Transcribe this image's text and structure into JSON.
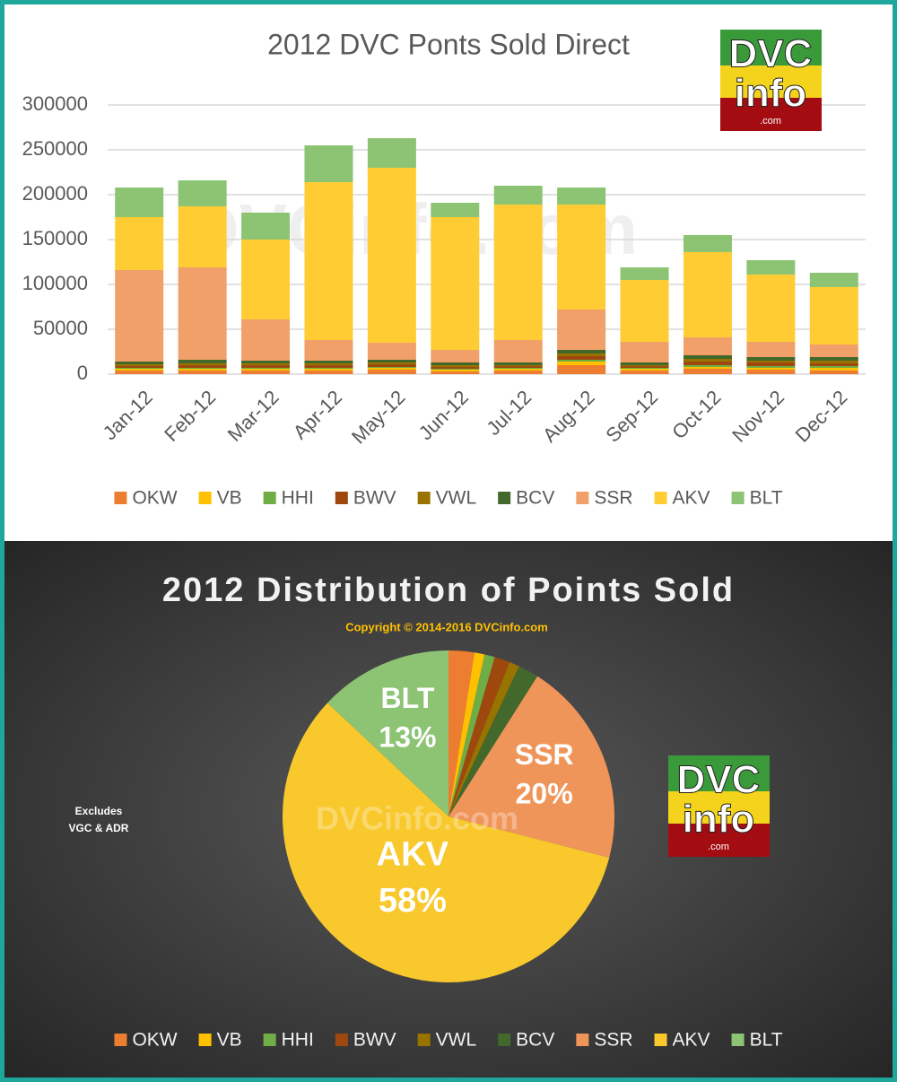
{
  "chart_data": [
    {
      "type": "bar",
      "stacked": true,
      "title": "2012 DVC Ponts Sold Direct",
      "categories": [
        "Jan-12",
        "Feb-12",
        "Mar-12",
        "Apr-12",
        "May-12",
        "Jun-12",
        "Jul-12",
        "Aug-12",
        "Sep-12",
        "Oct-12",
        "Nov-12",
        "Dec-12"
      ],
      "series": [
        {
          "name": "OKW",
          "color": "#ed7d31",
          "values": [
            4000,
            4000,
            4000,
            4000,
            5000,
            3000,
            4000,
            10000,
            4000,
            6000,
            5000,
            4000
          ]
        },
        {
          "name": "VB",
          "color": "#ffc000",
          "values": [
            2000,
            2000,
            2000,
            2000,
            2000,
            2000,
            2000,
            4000,
            2000,
            2000,
            2000,
            3000
          ]
        },
        {
          "name": "HHI",
          "color": "#70ad47",
          "values": [
            1000,
            1000,
            1000,
            1000,
            1000,
            1000,
            1000,
            2000,
            1000,
            2000,
            2000,
            2000
          ]
        },
        {
          "name": "BWV",
          "color": "#9e480e",
          "values": [
            2000,
            3000,
            3000,
            3000,
            3000,
            2000,
            2000,
            4000,
            2000,
            4000,
            4000,
            3000
          ]
        },
        {
          "name": "VWL",
          "color": "#997300",
          "values": [
            2000,
            2000,
            2000,
            2000,
            2000,
            2000,
            1000,
            3000,
            1000,
            3000,
            2000,
            3000
          ]
        },
        {
          "name": "BCV",
          "color": "#43682b",
          "values": [
            3000,
            4000,
            3000,
            3000,
            3000,
            3000,
            3000,
            4000,
            3000,
            4000,
            4000,
            4000
          ]
        },
        {
          "name": "SSR",
          "color": "#f1a06a",
          "values": [
            102000,
            103000,
            46000,
            23000,
            19000,
            14000,
            25000,
            45000,
            23000,
            20000,
            17000,
            14000
          ]
        },
        {
          "name": "AKV",
          "color": "#ffcd33",
          "values": [
            59000,
            68000,
            89000,
            176000,
            195000,
            148000,
            151000,
            117000,
            69000,
            95000,
            75000,
            64000
          ]
        },
        {
          "name": "BLT",
          "color": "#8cc474",
          "values": [
            33000,
            29000,
            30000,
            41000,
            33000,
            16000,
            21000,
            19000,
            14000,
            19000,
            16000,
            16000
          ]
        }
      ],
      "ylim": [
        0,
        300000
      ],
      "yticks": [
        0,
        50000,
        100000,
        150000,
        200000,
        250000,
        300000
      ],
      "grid": true,
      "legend": "bottom"
    },
    {
      "type": "pie",
      "title": "2012 Distribution of Points Sold",
      "subtitle": "Copyright © 2014-2016 DVCinfo.com",
      "annotation": "Excludes VGC & ADR",
      "categories": [
        "OKW",
        "VB",
        "HHI",
        "BWV",
        "VWL",
        "BCV",
        "SSR",
        "AKV",
        "BLT"
      ],
      "values": [
        2.5,
        1,
        1,
        1.5,
        1,
        2,
        20,
        58,
        13
      ],
      "value_labels": [
        null,
        null,
        null,
        null,
        null,
        null,
        "20%",
        "58%",
        "13%"
      ],
      "colors": [
        "#ed7d31",
        "#ffc000",
        "#70ad47",
        "#9e480e",
        "#997300",
        "#43682b",
        "#f0955a",
        "#f8c82c",
        "#8cc474"
      ],
      "legend": "bottom"
    }
  ],
  "logo": {
    "line1": "DVC",
    "line2": "info",
    "line3": ".com"
  },
  "watermark": "DVCinfo.com"
}
